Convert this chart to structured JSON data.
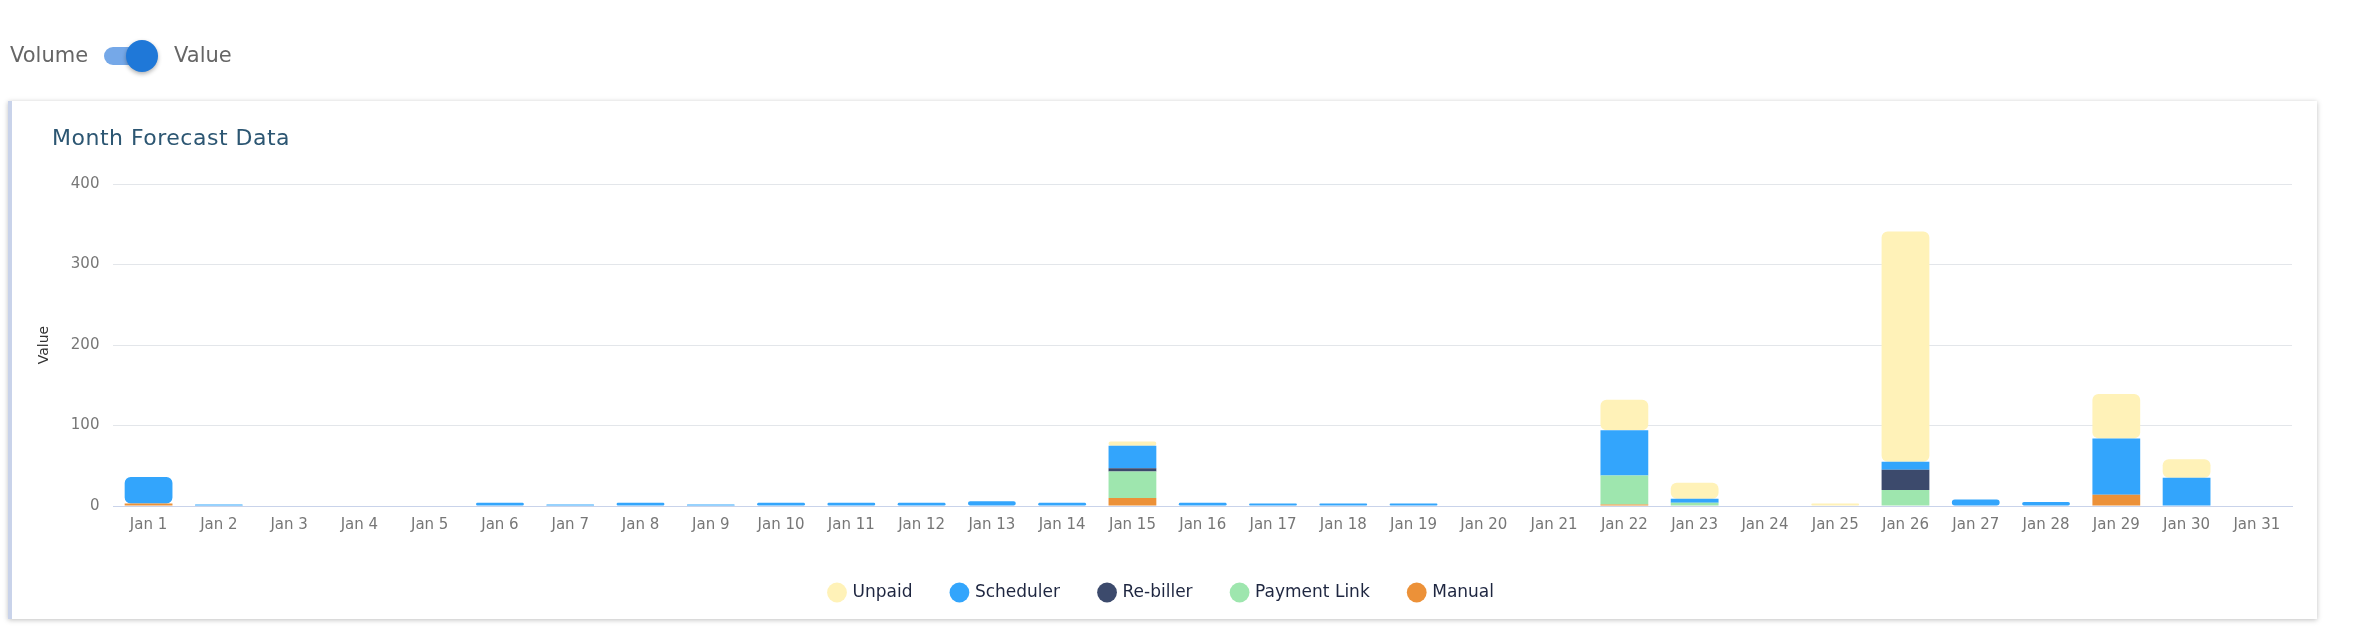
{
  "chart_data": {
    "type": "bar",
    "title": "Month Forecast Data",
    "ylabel": "Value",
    "annotations": [
      "Volume",
      "Value"
    ],
    "categories": [
      "Jan 1",
      "Jan 2",
      "Jan 3",
      "Jan 4",
      "Jan 5",
      "Jan 6",
      "Jan 7",
      "Jan 8",
      "Jan 9",
      "Jan 10",
      "Jan 11",
      "Jan 12",
      "Jan 13",
      "Jan 14",
      "Jan 15",
      "Jan 16",
      "Jan 17",
      "Jan 18",
      "Jan 19",
      "Jan 20",
      "Jan 21",
      "Jan 22",
      "Jan 23",
      "Jan 24",
      "Jan 25",
      "Jan 26",
      "Jan 27",
      "Jan 28",
      "Jan 29",
      "Jan 30",
      "Jan 31"
    ],
    "stacked": true,
    "ylim": [
      0,
      400
    ],
    "yticks": [
      0,
      100,
      200,
      300,
      400
    ],
    "grid": "y",
    "legend": "bottom",
    "series": [
      {
        "name": "Manual",
        "color": "#ec9138",
        "values": [
          3,
          0,
          0,
          0,
          0,
          0,
          0,
          0,
          0,
          0,
          0,
          0,
          0,
          0,
          10,
          0,
          0,
          0,
          0,
          0,
          0,
          2,
          0,
          0,
          0,
          0,
          0,
          0,
          14,
          0,
          0
        ]
      },
      {
        "name": "Payment Link",
        "color": "#9ee6ae",
        "values": [
          0,
          0,
          0,
          0,
          0,
          0,
          0,
          0,
          0,
          0,
          0,
          0,
          0,
          0,
          33,
          0,
          0,
          0,
          0,
          0,
          0,
          36,
          4,
          0,
          0,
          20,
          0,
          0,
          0,
          0,
          0
        ]
      },
      {
        "name": "Re-biller",
        "color": "#3c4a6c",
        "values": [
          0,
          0,
          0,
          0,
          0,
          0,
          0,
          0,
          0,
          0,
          0,
          0,
          0,
          0,
          4,
          0,
          0,
          0,
          0,
          0,
          0,
          0,
          0,
          0,
          0,
          25,
          0,
          0,
          0,
          0,
          0
        ]
      },
      {
        "name": "Scheduler",
        "color": "#33a5fc",
        "values": [
          33,
          2,
          0,
          0,
          0,
          4,
          2,
          4,
          2,
          4,
          4,
          4,
          6,
          4,
          28,
          4,
          3,
          3,
          3,
          0,
          0,
          56,
          5,
          0,
          0,
          10,
          8,
          5,
          70,
          35,
          0
        ]
      },
      {
        "name": "Unpaid",
        "color": "#fff2b8",
        "values": [
          0,
          0,
          0,
          0,
          0,
          0,
          0,
          0,
          0,
          0,
          0,
          0,
          0,
          0,
          5,
          0,
          0,
          0,
          0,
          0,
          0,
          38,
          20,
          0,
          3,
          286,
          0,
          0,
          55,
          23,
          0
        ]
      }
    ]
  }
}
